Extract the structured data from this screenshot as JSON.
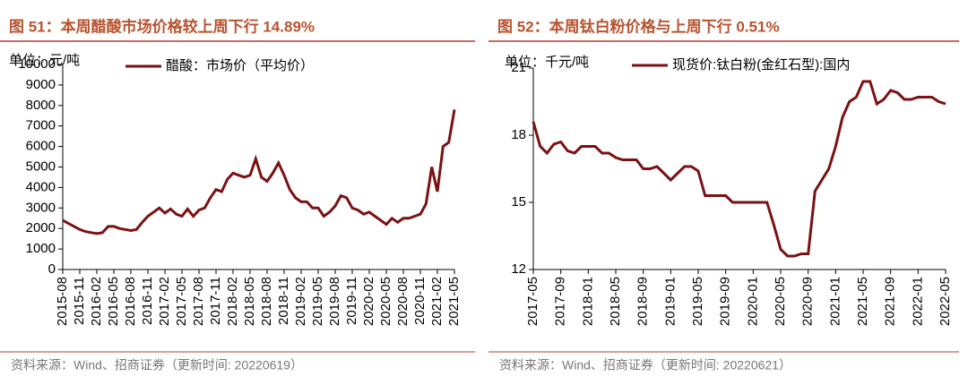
{
  "chart_data": [
    {
      "type": "line",
      "title": "图 51：本周醋酸市场价格较上周下行 14.89%",
      "unit": "单位：元/吨",
      "source": "资料来源：Wind、招商证券（更新时间: 20220619）",
      "categories": [
        "2015-08",
        null,
        null,
        "2015-11",
        null,
        null,
        "2016-02",
        null,
        null,
        "2016-05",
        null,
        null,
        "2016-08",
        null,
        null,
        "2016-11",
        null,
        null,
        "2017-02",
        null,
        null,
        "2017-05",
        null,
        null,
        "2017-08",
        null,
        null,
        "2017-11",
        null,
        null,
        "2018-02",
        null,
        null,
        "2018-05",
        null,
        null,
        "2018-08",
        null,
        null,
        "2018-11",
        null,
        null,
        "2019-02",
        null,
        null,
        "2019-05",
        null,
        null,
        "2019-08",
        null,
        null,
        "2019-11",
        null,
        null,
        "2020-02",
        null,
        null,
        "2020-05",
        null,
        null,
        "2020-08",
        null,
        null,
        "2020-11",
        null,
        null,
        "2021-02",
        null,
        null,
        "2021-05"
      ],
      "series": [
        {
          "name": "醋酸：市场价（平均价）",
          "color": "#7b1113",
          "values": [
            2400,
            2250,
            2100,
            1950,
            1850,
            1800,
            1750,
            1800,
            2100,
            2100,
            2000,
            1950,
            1900,
            1950,
            2300,
            2600,
            2800,
            3000,
            2750,
            2950,
            2700,
            2600,
            2950,
            2600,
            2900,
            3000,
            3500,
            3900,
            3800,
            4400,
            4700,
            4600,
            4500,
            4600,
            5400,
            4500,
            4300,
            4700,
            5200,
            4600,
            3900,
            3500,
            3300,
            3300,
            3000,
            3000,
            2600,
            2800,
            3100,
            3600,
            3500,
            3000,
            2900,
            2700,
            2800,
            2600,
            2400,
            2200,
            2500,
            2300,
            2500,
            2500,
            2600,
            2700,
            3200,
            5000,
            3800,
            6000,
            6200,
            7800
          ]
        }
      ],
      "ylim": [
        0,
        10000
      ],
      "yticks": [
        0,
        1000,
        2000,
        3000,
        4000,
        5000,
        6000,
        7000,
        8000,
        9000,
        10000
      ]
    },
    {
      "type": "line",
      "title": "图 52：本周钛白粉价格与上周下行 0.51%",
      "unit": "单位：千元/吨",
      "source": "资料来源：Wind、招商证券（更新时间: 20220621）",
      "categories": [
        "2017-05",
        null,
        null,
        null,
        "2017-09",
        null,
        null,
        null,
        "2018-01",
        null,
        null,
        null,
        "2018-05",
        null,
        null,
        null,
        "2018-09",
        null,
        null,
        null,
        "2019-01",
        null,
        null,
        null,
        "2019-05",
        null,
        null,
        null,
        "2019-09",
        null,
        null,
        null,
        "2020-01",
        null,
        null,
        null,
        "2020-05",
        null,
        null,
        null,
        "2020-09",
        null,
        null,
        null,
        "2021-01",
        null,
        null,
        null,
        "2021-05",
        null,
        null,
        null,
        "2021-09",
        null,
        null,
        null,
        "2022-01",
        null,
        null,
        null,
        "2022-05"
      ],
      "series": [
        {
          "name": "现货价:钛白粉(金红石型):国内",
          "color": "#7b1113",
          "values": [
            18.6,
            17.5,
            17.2,
            17.6,
            17.7,
            17.3,
            17.2,
            17.5,
            17.5,
            17.5,
            17.2,
            17.2,
            17.0,
            16.9,
            16.9,
            16.9,
            16.5,
            16.5,
            16.6,
            16.3,
            16.0,
            16.3,
            16.6,
            16.6,
            16.4,
            15.3,
            15.3,
            15.3,
            15.3,
            15.0,
            15.0,
            15.0,
            15.0,
            15.0,
            15.0,
            14.0,
            12.9,
            12.6,
            12.6,
            12.7,
            12.7,
            15.5,
            16.0,
            16.5,
            17.5,
            18.8,
            19.5,
            19.7,
            20.4,
            20.4,
            19.4,
            19.6,
            20.0,
            19.9,
            19.6,
            19.6,
            19.7,
            19.7,
            19.7,
            19.5,
            19.4
          ]
        }
      ],
      "ylim": [
        12,
        21
      ],
      "yticks": [
        12,
        15,
        18,
        21
      ]
    }
  ]
}
